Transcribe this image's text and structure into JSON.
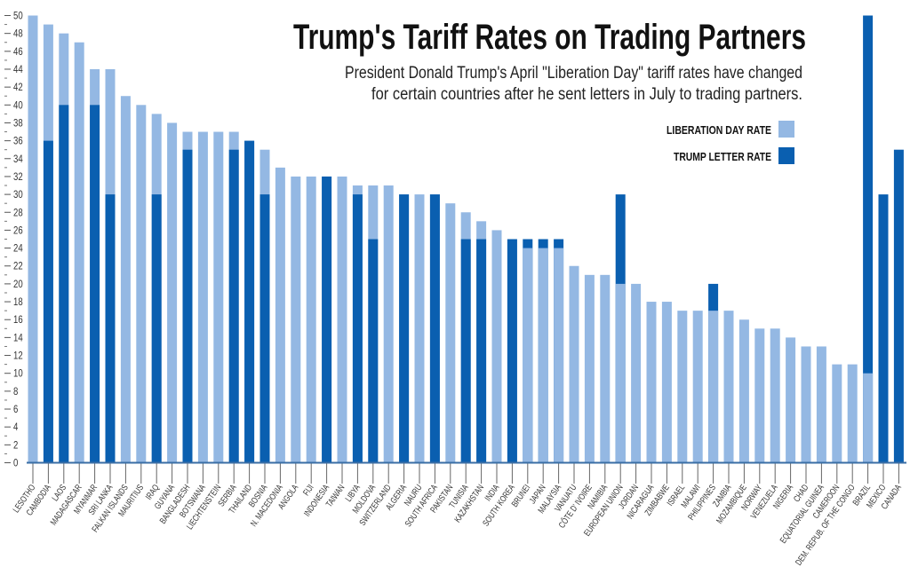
{
  "chart_data": {
    "type": "bar",
    "title": "Trump's Tariff Rates on Trading Partners",
    "subtitle_lines": [
      "President Donald Trump's April \"Liberation Day\" tariff rates have changed",
      "for certain countries after he sent letters in July to trading partners."
    ],
    "legend": [
      {
        "name": "LIBERATION DAY RATE",
        "color": "#94b8e3"
      },
      {
        "name": "TRUMP LETTER RATE",
        "color": "#0a5fb0"
      }
    ],
    "legend_position": "top-right",
    "xlabel": "",
    "ylabel": "",
    "ylim": [
      0,
      50
    ],
    "yticks": [
      0,
      2,
      4,
      6,
      8,
      10,
      12,
      14,
      16,
      18,
      20,
      22,
      24,
      26,
      28,
      30,
      32,
      34,
      36,
      38,
      40,
      42,
      44,
      46,
      48,
      50
    ],
    "grid": false,
    "categories": [
      "LESOTHO",
      "CAMBODIA",
      "LAOS",
      "MADAGASCAR",
      "MYANMAR",
      "SRI LANKA",
      "FALKAN ISLANDS",
      "MAURITIUS",
      "IRAQ",
      "GUYANA",
      "BANGLADESH",
      "BOTSWANA",
      "LIECHTENSTEIN",
      "SERBIA",
      "THAILAND",
      "BOSNIA",
      "N. MACEDONIA",
      "ANGOLA",
      "FIJI",
      "INDONESIA",
      "TAIWAN",
      "LIBYA",
      "MOLDOVA",
      "SWITZERLAND",
      "ALGERIA",
      "NAURU",
      "SOUTH AFRICA",
      "PAKISTAN",
      "TUNISIA",
      "KAZAKHSTAN",
      "INDIA",
      "SOUTH KOREA",
      "BRUNEI",
      "JAPAN",
      "MALAYSIA",
      "VANUATU",
      "CÔTE D' IVOIRE",
      "NAMIBIA",
      "EUROPEAN UNION",
      "JORDAN",
      "NICARAGUA",
      "ZIMBABWE",
      "ISRAEL",
      "MALAWI",
      "PHILIPPINES",
      "ZAMBIA",
      "MOZAMBIQUE",
      "NORWAY",
      "VENEZUELA",
      "NIGERIA",
      "CHAD",
      "EQUATORIAL GUINEA",
      "CAMEROON",
      "DEM. REPUB. OF THE CONGO",
      "BRAZIL",
      "MEXICO",
      "CANADA"
    ],
    "series": [
      {
        "name": "LIBERATION DAY RATE",
        "values": [
          50,
          49,
          48,
          47,
          44,
          44,
          41,
          40,
          39,
          38,
          37,
          37,
          37,
          37,
          36,
          35,
          33,
          32,
          32,
          32,
          32,
          31,
          31,
          31,
          30,
          30,
          30,
          29,
          28,
          27,
          26,
          25,
          24,
          24,
          24,
          22,
          21,
          21,
          20,
          20,
          18,
          18,
          17,
          17,
          17,
          17,
          16,
          15,
          15,
          14,
          13,
          13,
          11,
          11,
          10,
          null,
          null
        ]
      },
      {
        "name": "TRUMP LETTER RATE",
        "values": [
          null,
          36,
          40,
          null,
          40,
          30,
          null,
          null,
          30,
          null,
          35,
          null,
          null,
          35,
          36,
          30,
          null,
          null,
          null,
          32,
          null,
          30,
          25,
          null,
          30,
          null,
          30,
          null,
          25,
          25,
          null,
          25,
          25,
          25,
          25,
          null,
          null,
          null,
          30,
          null,
          null,
          null,
          null,
          null,
          20,
          null,
          null,
          null,
          null,
          null,
          null,
          null,
          null,
          null,
          50,
          30,
          35
        ]
      }
    ]
  }
}
